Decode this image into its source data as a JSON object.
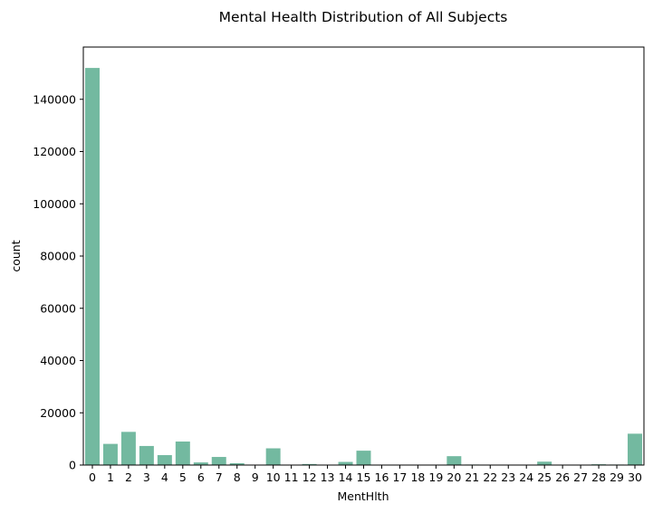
{
  "chart_data": {
    "type": "bar",
    "title": "Mental Health Distribution of All Subjects",
    "xlabel": "MentHlth",
    "ylabel": "count",
    "ylim": [
      0,
      160000
    ],
    "yticks": [
      0,
      20000,
      40000,
      60000,
      80000,
      100000,
      120000,
      140000
    ],
    "grid": false,
    "legend": "none",
    "bar_color": "#73b9a0",
    "categories": [
      "0",
      "1",
      "2",
      "3",
      "4",
      "5",
      "6",
      "7",
      "8",
      "9",
      "10",
      "11",
      "12",
      "13",
      "14",
      "15",
      "16",
      "17",
      "18",
      "19",
      "20",
      "21",
      "22",
      "23",
      "24",
      "25",
      "26",
      "27",
      "28",
      "29",
      "30"
    ],
    "values": [
      152000,
      8100,
      12700,
      7300,
      3800,
      9000,
      1000,
      3100,
      700,
      100,
      6400,
      50,
      400,
      80,
      1200,
      5500,
      100,
      100,
      100,
      30,
      3400,
      200,
      60,
      40,
      80,
      1300,
      40,
      100,
      300,
      200,
      12000
    ]
  }
}
